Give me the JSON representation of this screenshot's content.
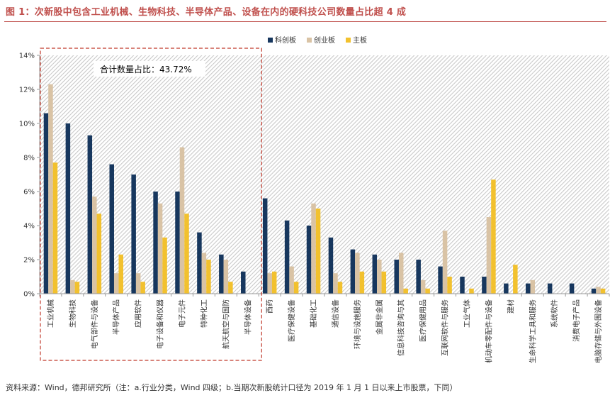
{
  "figure": {
    "title": "图 1：次新股中包含工业机械、生物科技、半导体产品、设备在内的硬科技公司数量占比超 4 成",
    "source": "资料来源：Wind，德邦研究所（注：a.行业分类，Wind 四级；b.当期次新股统计口径为 2019 年 1 月 1 日以来上市股票，下同）",
    "annotation": "合计数量占比：43.72%"
  },
  "colors": {
    "title": "#c0504d",
    "series_star": "#17375e",
    "series_gem": "#d9c3a5",
    "series_main": "#f2c12e",
    "highlight_box": "#c0392b",
    "hatch": "#c9c9c9"
  },
  "chart_data": {
    "type": "bar",
    "ylim": [
      0,
      14
    ],
    "yticks": [
      0,
      2,
      4,
      6,
      8,
      10,
      12,
      14
    ],
    "ytick_labels": [
      "0%",
      "2%",
      "4%",
      "6%",
      "8%",
      "10%",
      "12%",
      "14%"
    ],
    "y_unit": "%",
    "grid": false,
    "legend_position": "top-center",
    "highlight_group_count": 10,
    "categories": [
      "工业机械",
      "生物科技",
      "电气部件与设备",
      "半导体产品",
      "应用软件",
      "电子设备和仪器",
      "电子元件",
      "特种化工",
      "航天航空与国防",
      "半导体设备",
      "西药",
      "医疗保健设备",
      "基础化工",
      "通信设备",
      "环境与设施服务",
      "金属非金属",
      "信息科技咨询与其",
      "医疗保健用品",
      "互联网软件与服务",
      "工业气体",
      "机动车零配件与设备",
      "建材",
      "生命科学工具和服务",
      "系统软件",
      "消费电子产品",
      "电脑存储与外围设备"
    ],
    "series": [
      {
        "name": "科创板",
        "values": [
          10.6,
          10.0,
          9.3,
          7.6,
          7.0,
          6.0,
          6.0,
          3.6,
          2.3,
          1.3,
          5.6,
          4.3,
          4.0,
          3.3,
          2.6,
          2.3,
          2.0,
          2.0,
          1.6,
          1.0,
          1.0,
          0.6,
          0.6,
          0.6,
          0.6,
          0.3
        ]
      },
      {
        "name": "创业板",
        "values": [
          12.3,
          0.8,
          5.7,
          1.2,
          1.2,
          5.3,
          8.6,
          2.4,
          2.0,
          0,
          1.2,
          1.6,
          5.3,
          1.2,
          2.4,
          2.0,
          2.4,
          0.8,
          3.7,
          0,
          4.5,
          0,
          0.8,
          0,
          0,
          0.4
        ]
      },
      {
        "name": "主板",
        "values": [
          7.7,
          0.7,
          4.7,
          2.3,
          0.7,
          3.3,
          4.7,
          2.0,
          0.7,
          0,
          1.3,
          0.7,
          5.0,
          0.7,
          1.3,
          1.3,
          0.3,
          0.3,
          1.0,
          0.3,
          6.7,
          1.7,
          0,
          0,
          0,
          0.3
        ]
      }
    ]
  }
}
